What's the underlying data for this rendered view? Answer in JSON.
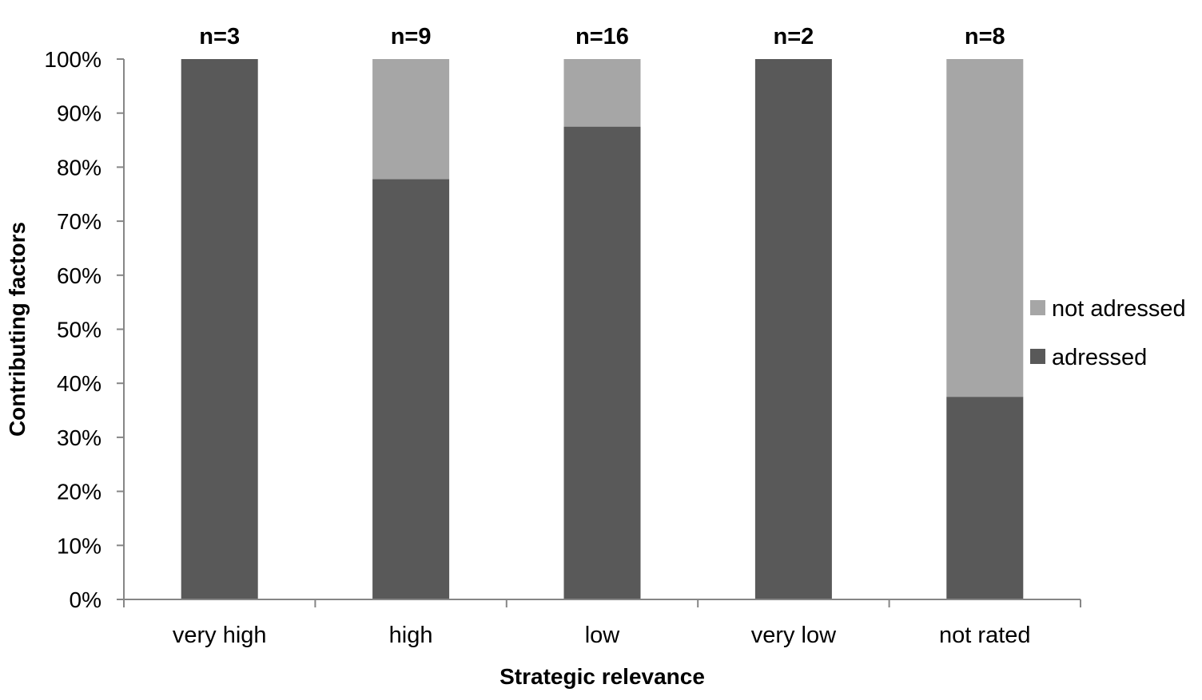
{
  "chart_data": {
    "type": "bar",
    "stacked": true,
    "percent_stacked": true,
    "categories": [
      "very high",
      "high",
      "low",
      "very low",
      "not rated"
    ],
    "category_annotations": [
      "n=3",
      "n=9",
      "n=16",
      "n=2",
      "n=8"
    ],
    "series": [
      {
        "name": "adressed",
        "values": [
          100,
          77.8,
          87.5,
          100,
          37.5
        ],
        "color": "#595959"
      },
      {
        "name": "not adressed",
        "values": [
          0,
          22.2,
          12.5,
          0,
          62.5
        ],
        "color": "#a6a6a6"
      }
    ],
    "xlabel": "Strategic relevance",
    "ylabel": "Contributing factors",
    "ylim": [
      0,
      100
    ],
    "yticks": [
      "0%",
      "10%",
      "20%",
      "30%",
      "40%",
      "50%",
      "60%",
      "70%",
      "80%",
      "90%",
      "100%"
    ],
    "grid": false,
    "legend_position": "right",
    "legend_order": [
      "not adressed",
      "adressed"
    ]
  }
}
